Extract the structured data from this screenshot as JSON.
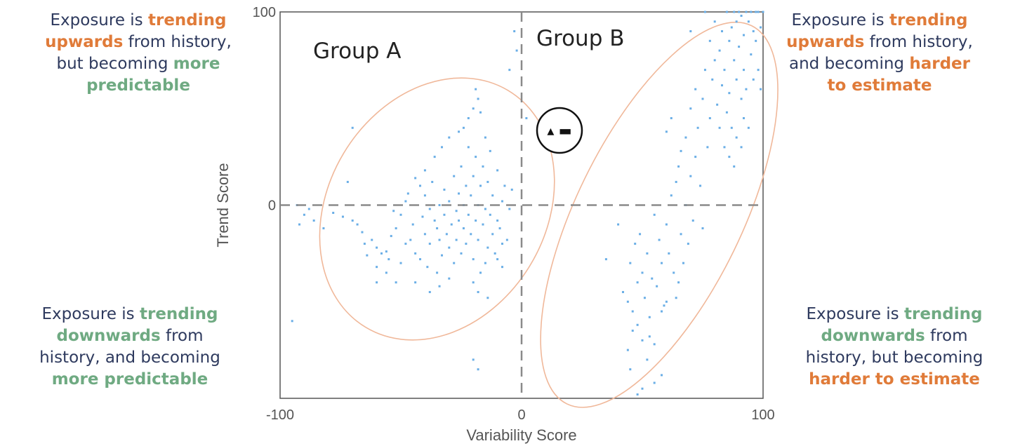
{
  "colors": {
    "orange": "#e07b39",
    "green": "#6faa82",
    "text_dark": "#2e3a5e",
    "points": "#6aaee6",
    "ellipse": "#f0b89a",
    "axis_text": "#555555",
    "dashed": "#8a8a8a"
  },
  "quadrants": {
    "top_left": {
      "line1_a": "Exposure is ",
      "line1_b": "trending",
      "line2_a": "upwards",
      "line2_b": " from history,",
      "line3": "but becoming ",
      "line3_b": "more",
      "line4": "predictable"
    },
    "top_right": {
      "line1_a": "Exposure is ",
      "line1_b": "trending",
      "line2_a": "upwards",
      "line2_b": " from history,",
      "line3": "and becoming ",
      "line3_b": "harder",
      "line4": "to estimate"
    },
    "bottom_left": {
      "line1_a": "Exposure is ",
      "line1_b": "trending",
      "line2_a": "downwards",
      "line2_b": " from",
      "line3": "history, and becoming",
      "line4": "more predictable"
    },
    "bottom_right": {
      "line1_a": "Exposure is ",
      "line1_b": "trending",
      "line2_a": "downwards",
      "line2_b": " from",
      "line3": "history, but becoming",
      "line4": "harder to estimate"
    }
  },
  "chart_data": {
    "type": "scatter",
    "xlabel": "Variability Score",
    "ylabel": "Trend Score",
    "xlim": [
      -100,
      100
    ],
    "ylim": [
      -100,
      100
    ],
    "xticks": [
      "-100",
      "0",
      "100"
    ],
    "yticks": [
      "100",
      "0"
    ],
    "grid": false,
    "group_labels": [
      "Group A",
      "Group B"
    ],
    "marker_symbol": "▴ ▬",
    "series": [
      {
        "values": [
          [
            -92,
            -10
          ],
          [
            -93,
            0
          ],
          [
            -90,
            -5
          ],
          [
            -95,
            -60
          ],
          [
            -88,
            -2
          ],
          [
            -72,
            12
          ],
          [
            -70,
            40
          ],
          [
            -68,
            -10
          ],
          [
            -65,
            -20
          ],
          [
            -62,
            -18
          ],
          [
            -60,
            -22
          ],
          [
            -58,
            -25
          ],
          [
            -56,
            -24
          ],
          [
            -55,
            -28
          ],
          [
            -54,
            -16
          ],
          [
            -52,
            -12
          ],
          [
            -52,
            -40
          ],
          [
            -50,
            -5
          ],
          [
            -50,
            -30
          ],
          [
            -48,
            2
          ],
          [
            -48,
            -20
          ],
          [
            -46,
            -18
          ],
          [
            -45,
            -10
          ],
          [
            -44,
            -25
          ],
          [
            -42,
            -28
          ],
          [
            -42,
            10
          ],
          [
            -41,
            -6
          ],
          [
            -40,
            -15
          ],
          [
            -40,
            5
          ],
          [
            -39,
            -32
          ],
          [
            -38,
            -2
          ],
          [
            -38,
            -20
          ],
          [
            -37,
            12
          ],
          [
            -36,
            -8
          ],
          [
            -35,
            -12
          ],
          [
            -35,
            -35
          ],
          [
            -34,
            0
          ],
          [
            -34,
            -18
          ],
          [
            -33,
            -26
          ],
          [
            -32,
            -5
          ],
          [
            -32,
            8
          ],
          [
            -31,
            -15
          ],
          [
            -30,
            -22
          ],
          [
            -30,
            2
          ],
          [
            -29,
            -10
          ],
          [
            -28,
            15
          ],
          [
            -28,
            -30
          ],
          [
            -27,
            -3
          ],
          [
            -27,
            -18
          ],
          [
            -26,
            6
          ],
          [
            -26,
            -8
          ],
          [
            -25,
            -25
          ],
          [
            -25,
            20
          ],
          [
            -24,
            -12
          ],
          [
            -24,
            0
          ],
          [
            -23,
            -20
          ],
          [
            -23,
            10
          ],
          [
            -22,
            -5
          ],
          [
            -22,
            30
          ],
          [
            -21,
            -15
          ],
          [
            -21,
            5
          ],
          [
            -20,
            -28
          ],
          [
            -20,
            15
          ],
          [
            -19,
            -8
          ],
          [
            -19,
            25
          ],
          [
            -18,
            0
          ],
          [
            -18,
            -18
          ],
          [
            -17,
            10
          ],
          [
            -17,
            -35
          ],
          [
            -16,
            -10
          ],
          [
            -16,
            20
          ],
          [
            -15,
            -2
          ],
          [
            -15,
            35
          ],
          [
            -14,
            -22
          ],
          [
            -14,
            12
          ],
          [
            -13,
            -5
          ],
          [
            -13,
            28
          ],
          [
            -12,
            -15
          ],
          [
            -12,
            5
          ],
          [
            -11,
            -25
          ],
          [
            -10,
            18
          ],
          [
            -10,
            -8
          ],
          [
            -9,
            -12
          ],
          [
            -8,
            2
          ],
          [
            -8,
            -20
          ],
          [
            -7,
            10
          ],
          [
            -6,
            -18
          ],
          [
            -5,
            -2
          ],
          [
            -4,
            8
          ],
          [
            -22,
            45
          ],
          [
            -20,
            50
          ],
          [
            -18,
            55
          ],
          [
            -19,
            60
          ],
          [
            -17,
            48
          ],
          [
            -24,
            40
          ],
          [
            -26,
            38
          ],
          [
            -30,
            35
          ],
          [
            -33,
            30
          ],
          [
            -36,
            25
          ],
          [
            -40,
            18
          ],
          [
            -44,
            14
          ],
          [
            -47,
            6
          ],
          [
            -53,
            -3
          ],
          [
            -56,
            -35
          ],
          [
            -60,
            -32
          ],
          [
            -64,
            -26
          ],
          [
            -66,
            -14
          ],
          [
            -70,
            -8
          ],
          [
            -74,
            -6
          ],
          [
            -78,
            -4
          ],
          [
            -82,
            -12
          ],
          [
            -86,
            -8
          ],
          [
            -30,
            -38
          ],
          [
            -34,
            -42
          ],
          [
            -38,
            -45
          ],
          [
            -44,
            -40
          ],
          [
            -20,
            -40
          ],
          [
            -18,
            -45
          ],
          [
            -15,
            -30
          ],
          [
            -14,
            -48
          ],
          [
            -10,
            -28
          ],
          [
            -8,
            -32
          ],
          [
            -20,
            -80
          ],
          [
            -18,
            -85
          ],
          [
            -5,
            70
          ],
          [
            -3,
            90
          ],
          [
            -2,
            80
          ],
          [
            2,
            45
          ],
          [
            -60,
            -40
          ]
        ]
      },
      {
        "values": [
          [
            35,
            -28
          ],
          [
            40,
            -10
          ],
          [
            42,
            -45
          ],
          [
            44,
            -50
          ],
          [
            45,
            -30
          ],
          [
            46,
            -55
          ],
          [
            47,
            -20
          ],
          [
            48,
            -62
          ],
          [
            48,
            -40
          ],
          [
            49,
            -15
          ],
          [
            50,
            -70
          ],
          [
            50,
            -35
          ],
          [
            51,
            -48
          ],
          [
            52,
            -25
          ],
          [
            52,
            -80
          ],
          [
            53,
            -58
          ],
          [
            54,
            -38
          ],
          [
            55,
            -5
          ],
          [
            55,
            -72
          ],
          [
            56,
            -42
          ],
          [
            57,
            -18
          ],
          [
            58,
            -30
          ],
          [
            58,
            -88
          ],
          [
            59,
            -52
          ],
          [
            60,
            -10
          ],
          [
            60,
            38
          ],
          [
            61,
            -25
          ],
          [
            62,
            5
          ],
          [
            62,
            45
          ],
          [
            63,
            -35
          ],
          [
            64,
            12
          ],
          [
            64,
            -48
          ],
          [
            65,
            20
          ],
          [
            66,
            -15
          ],
          [
            66,
            28
          ],
          [
            67,
            -30
          ],
          [
            68,
            35
          ],
          [
            68,
            0
          ],
          [
            69,
            -20
          ],
          [
            70,
            50
          ],
          [
            70,
            15
          ],
          [
            71,
            -8
          ],
          [
            72,
            25
          ],
          [
            72,
            60
          ],
          [
            73,
            40
          ],
          [
            74,
            10
          ],
          [
            75,
            55
          ],
          [
            75,
            -12
          ],
          [
            76,
            70
          ],
          [
            77,
            30
          ],
          [
            78,
            45
          ],
          [
            78,
            85
          ],
          [
            79,
            65
          ],
          [
            80,
            75
          ],
          [
            80,
            95
          ],
          [
            81,
            52
          ],
          [
            82,
            80
          ],
          [
            83,
            90
          ],
          [
            83,
            62
          ],
          [
            84,
            70
          ],
          [
            85,
            100
          ],
          [
            85,
            48
          ],
          [
            86,
            85
          ],
          [
            86,
            58
          ],
          [
            87,
            92
          ],
          [
            87,
            40
          ],
          [
            88,
            100
          ],
          [
            88,
            75
          ],
          [
            89,
            65
          ],
          [
            89,
            95
          ],
          [
            90,
            100
          ],
          [
            90,
            82
          ],
          [
            91,
            55
          ],
          [
            91,
            98
          ],
          [
            92,
            88
          ],
          [
            92,
            70
          ],
          [
            93,
            100
          ],
          [
            93,
            60
          ],
          [
            94,
            95
          ],
          [
            95,
            100
          ],
          [
            95,
            78
          ],
          [
            96,
            90
          ],
          [
            97,
            100
          ],
          [
            97,
            85
          ],
          [
            98,
            70
          ],
          [
            98,
            100
          ],
          [
            99,
            92
          ],
          [
            99,
            60
          ],
          [
            100,
            100
          ],
          [
            96,
            65
          ],
          [
            91,
            30
          ],
          [
            89,
            35
          ],
          [
            88,
            20
          ],
          [
            92,
            45
          ],
          [
            94,
            40
          ],
          [
            84,
            30
          ],
          [
            86,
            25
          ],
          [
            76,
            100
          ],
          [
            70,
            90
          ],
          [
            82,
            40
          ],
          [
            46,
            -65
          ],
          [
            44,
            -75
          ],
          [
            50,
            -95
          ],
          [
            48,
            -98
          ],
          [
            55,
            -92
          ],
          [
            45,
            -85
          ],
          [
            53,
            -68
          ],
          [
            58,
            -55
          ],
          [
            60,
            -50
          ],
          [
            65,
            -40
          ]
        ]
      }
    ]
  }
}
